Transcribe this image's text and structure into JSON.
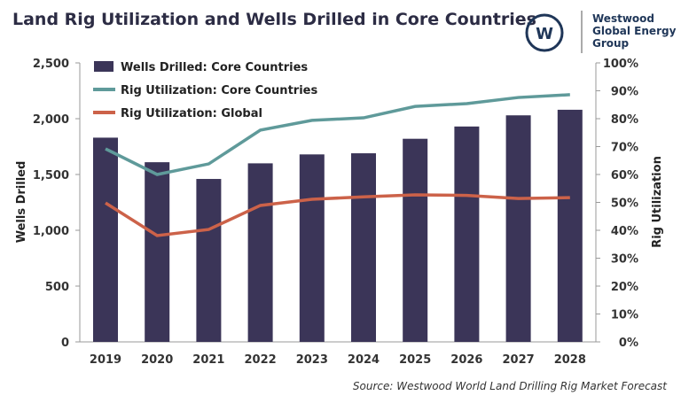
{
  "logo": {
    "line1": "Westwood",
    "line2": "Global Energy",
    "line3": "Group",
    "mark": "W"
  },
  "chart_data": {
    "type": "bar+line",
    "title": "Land Rig Utilization and Wells Drilled in Core Countries",
    "source": "Source: Westwood World Land Drilling Rig Market Forecast",
    "categories": [
      "2019",
      "2020",
      "2021",
      "2022",
      "2023",
      "2024",
      "2025",
      "2026",
      "2027",
      "2028"
    ],
    "ylabel": "Wells Drilled",
    "y2label": "Rig Utilization",
    "ylim": [
      0,
      2500
    ],
    "y2lim": [
      0,
      100
    ],
    "yticks": [
      "0",
      "500",
      "1,000",
      "1,500",
      "2,000",
      "2,500"
    ],
    "y2ticks": [
      "0%",
      "10%",
      "20%",
      "30%",
      "40%",
      "50%",
      "60%",
      "70%",
      "80%",
      "90%",
      "100%"
    ],
    "grid": false,
    "legend": "top-left",
    "series": [
      {
        "name": "Wells Drilled: Core Countries",
        "type": "bar",
        "axis": "left",
        "color": "#3b3558",
        "values": [
          1830,
          1610,
          1460,
          1600,
          1680,
          1690,
          1820,
          1930,
          2030,
          2080
        ]
      },
      {
        "name": "Rig Utilization: Core Countries",
        "type": "line",
        "axis": "right",
        "color": "#5f9a9a",
        "values": [
          69.2,
          60.0,
          63.8,
          75.9,
          79.4,
          80.3,
          84.4,
          85.4,
          87.6,
          88.6
        ]
      },
      {
        "name": "Rig Utilization: Global",
        "type": "line",
        "axis": "right",
        "color": "#cc6249",
        "values": [
          49.8,
          38.1,
          40.3,
          48.9,
          51.1,
          52.0,
          52.7,
          52.5,
          51.4,
          51.7
        ]
      }
    ]
  }
}
